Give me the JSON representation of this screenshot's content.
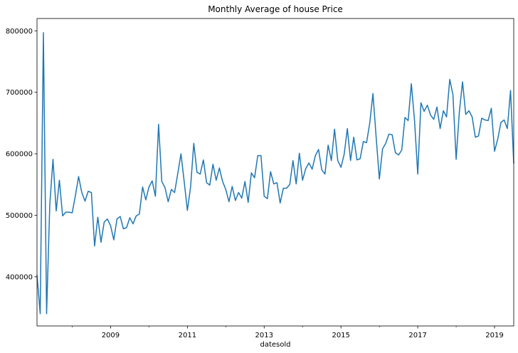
{
  "chart_data": {
    "type": "line",
    "title": "Monthly Average of house Price",
    "xlabel": "datesold",
    "ylabel": "",
    "color": "#1f77b4",
    "grid": false,
    "legend": "none",
    "xlim": [
      "2007-02",
      "2019-07"
    ],
    "ylim": [
      320000,
      820000
    ],
    "x_ticks": [
      "2009",
      "2011",
      "2013",
      "2015",
      "2017",
      "2019"
    ],
    "y_ticks": [
      "400000",
      "500000",
      "600000",
      "700000",
      "800000"
    ],
    "series": [
      {
        "x": [
          "2007-02",
          "2007-03",
          "2007-04",
          "2007-05",
          "2007-06",
          "2007-07",
          "2007-08",
          "2007-09",
          "2007-10",
          "2007-11",
          "2007-12",
          "2008-01",
          "2008-02",
          "2008-03",
          "2008-04",
          "2008-05",
          "2008-06",
          "2008-07",
          "2008-08",
          "2008-09",
          "2008-10",
          "2008-11",
          "2008-12",
          "2009-01",
          "2009-02",
          "2009-03",
          "2009-04",
          "2009-05",
          "2009-06",
          "2009-07",
          "2009-08",
          "2009-09",
          "2009-10",
          "2009-11",
          "2009-12",
          "2010-01",
          "2010-02",
          "2010-03",
          "2010-04",
          "2010-05",
          "2010-06",
          "2010-07",
          "2010-08",
          "2010-09",
          "2010-10",
          "2010-11",
          "2010-12",
          "2011-01",
          "2011-02",
          "2011-03",
          "2011-04",
          "2011-05",
          "2011-06",
          "2011-07",
          "2011-08",
          "2011-09",
          "2011-10",
          "2011-11",
          "2011-12",
          "2012-01",
          "2012-02",
          "2012-03",
          "2012-04",
          "2012-05",
          "2012-06",
          "2012-07",
          "2012-08",
          "2012-09",
          "2012-10",
          "2012-11",
          "2012-12",
          "2013-01",
          "2013-02",
          "2013-03",
          "2013-04",
          "2013-05",
          "2013-06",
          "2013-07",
          "2013-08",
          "2013-09",
          "2013-10",
          "2013-11",
          "2013-12",
          "2014-01",
          "2014-02",
          "2014-03",
          "2014-04",
          "2014-05",
          "2014-06",
          "2014-07",
          "2014-08",
          "2014-09",
          "2014-10",
          "2014-11",
          "2014-12",
          "2015-01",
          "2015-02",
          "2015-03",
          "2015-04",
          "2015-05",
          "2015-06",
          "2015-07",
          "2015-08",
          "2015-09",
          "2015-10",
          "2015-11",
          "2015-12",
          "2016-01",
          "2016-02",
          "2016-03",
          "2016-04",
          "2016-05",
          "2016-06",
          "2016-07",
          "2016-08",
          "2016-09",
          "2016-10",
          "2016-11",
          "2016-12",
          "2017-01",
          "2017-02",
          "2017-03",
          "2017-04",
          "2017-05",
          "2017-06",
          "2017-07",
          "2017-08",
          "2017-09",
          "2017-10",
          "2017-11",
          "2017-12",
          "2018-01",
          "2018-02",
          "2018-03",
          "2018-04",
          "2018-05",
          "2018-06",
          "2018-07",
          "2018-08",
          "2018-09",
          "2018-10",
          "2018-11",
          "2018-12",
          "2019-01",
          "2019-02",
          "2019-03",
          "2019-04",
          "2019-05",
          "2019-06",
          "2019-07"
        ],
        "y": [
          403000,
          340000,
          797000,
          340000,
          518000,
          591000,
          507000,
          557000,
          499000,
          505000,
          505000,
          504000,
          532000,
          563000,
          537000,
          523000,
          539000,
          537000,
          450000,
          497000,
          456000,
          489000,
          494000,
          483000,
          460000,
          494000,
          498000,
          478000,
          480000,
          496000,
          486000,
          499000,
          502000,
          546000,
          525000,
          546000,
          556000,
          531000,
          648000,
          555000,
          545000,
          522000,
          542000,
          537000,
          568000,
          600000,
          555000,
          508000,
          546000,
          617000,
          570000,
          567000,
          590000,
          553000,
          549000,
          583000,
          557000,
          577000,
          555000,
          542000,
          522000,
          547000,
          524000,
          537000,
          528000,
          555000,
          521000,
          569000,
          561000,
          597000,
          597000,
          531000,
          527000,
          571000,
          551000,
          553000,
          520000,
          544000,
          544000,
          550000,
          589000,
          551000,
          601000,
          557000,
          576000,
          585000,
          575000,
          597000,
          607000,
          574000,
          567000,
          614000,
          589000,
          640000,
          589000,
          578000,
          599000,
          641000,
          589000,
          627000,
          590000,
          592000,
          620000,
          618000,
          650000,
          698000,
          627000,
          559000,
          608000,
          617000,
          632000,
          631000,
          602000,
          598000,
          606000,
          659000,
          654000,
          714000,
          654000,
          567000,
          683000,
          669000,
          679000,
          663000,
          656000,
          676000,
          641000,
          670000,
          660000,
          721000,
          696000,
          591000,
          668000,
          717000,
          664000,
          670000,
          660000,
          627000,
          629000,
          658000,
          655000,
          654000,
          674000,
          604000,
          624000,
          651000,
          655000,
          641000,
          703000,
          584000
        ]
      }
    ]
  }
}
